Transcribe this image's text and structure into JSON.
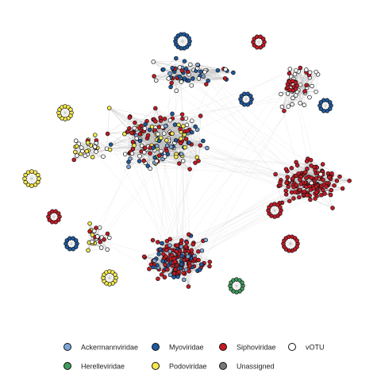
{
  "legend": [
    {
      "name": "Ackermannviridae",
      "color": "#7ea6d8"
    },
    {
      "name": "Myoviridae",
      "color": "#1f5aa0"
    },
    {
      "name": "Siphoviridae",
      "color": "#c41a24"
    },
    {
      "name": "vOTU",
      "color": "#ffffff"
    },
    {
      "name": "Herelleviridae",
      "color": "#3e9b5b"
    },
    {
      "name": "Podoviridae",
      "color": "#f6ea4b"
    },
    {
      "name": "Unassigned",
      "color": "#777777"
    }
  ]
}
